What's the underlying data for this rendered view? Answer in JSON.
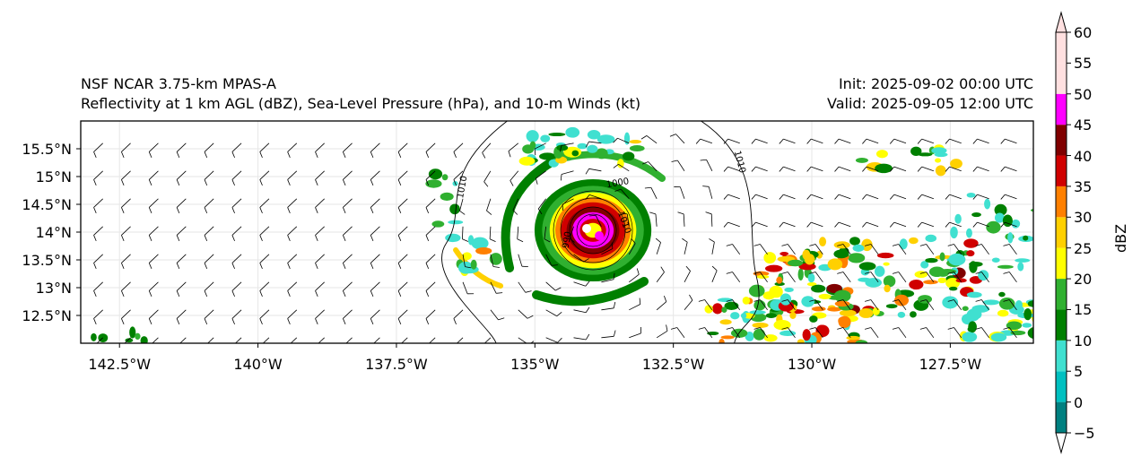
{
  "title": {
    "model": "NSF NCAR 3.75-km MPAS-A",
    "fields": "Reflectivity at 1 km AGL (dBZ), Sea-Level Pressure (hPa), and 10-m Winds (kt)",
    "init": "Init: 2025-09-02 00:00 UTC",
    "valid": "Valid: 2025-09-05 12:00 UTC"
  },
  "axes": {
    "lat_ticks": [
      "15.5°N",
      "15°N",
      "14.5°N",
      "14°N",
      "13.5°N",
      "13°N",
      "12.5°N"
    ],
    "lat_values": [
      15.5,
      15.0,
      14.5,
      14.0,
      13.5,
      13.0,
      12.5
    ],
    "lon_ticks": [
      "142.5°W",
      "140°W",
      "137.5°W",
      "135°W",
      "132.5°W",
      "130°W",
      "127.5°W"
    ],
    "lon_values": [
      -142.5,
      -140.0,
      -137.5,
      -135.0,
      -132.5,
      -130.0,
      -127.5
    ],
    "lon_range": [
      -143.2,
      -126.0
    ],
    "lat_range": [
      12.0,
      16.0
    ]
  },
  "contours": {
    "isobar_labels": [
      "1010",
      "1010",
      "1010",
      "1000",
      "990"
    ]
  },
  "colorbar": {
    "label": "dBZ",
    "ticks": [
      "60",
      "55",
      "50",
      "45",
      "40",
      "35",
      "30",
      "25",
      "20",
      "15",
      "10",
      "5",
      "0",
      "−5"
    ],
    "levels": [
      -5,
      0,
      5,
      10,
      15,
      20,
      25,
      30,
      35,
      40,
      45,
      50,
      55,
      60
    ],
    "colors": [
      "#ffffff",
      "#008080",
      "#00c0c0",
      "#40e0d0",
      "#008000",
      "#30b030",
      "#ffff00",
      "#ffd000",
      "#ff8000",
      "#d00000",
      "#800000",
      "#ff00ff",
      "#ffe0e0"
    ],
    "extend": "both"
  },
  "storm": {
    "name": "",
    "center_lon": -134.0,
    "center_lat": 14.0
  }
}
